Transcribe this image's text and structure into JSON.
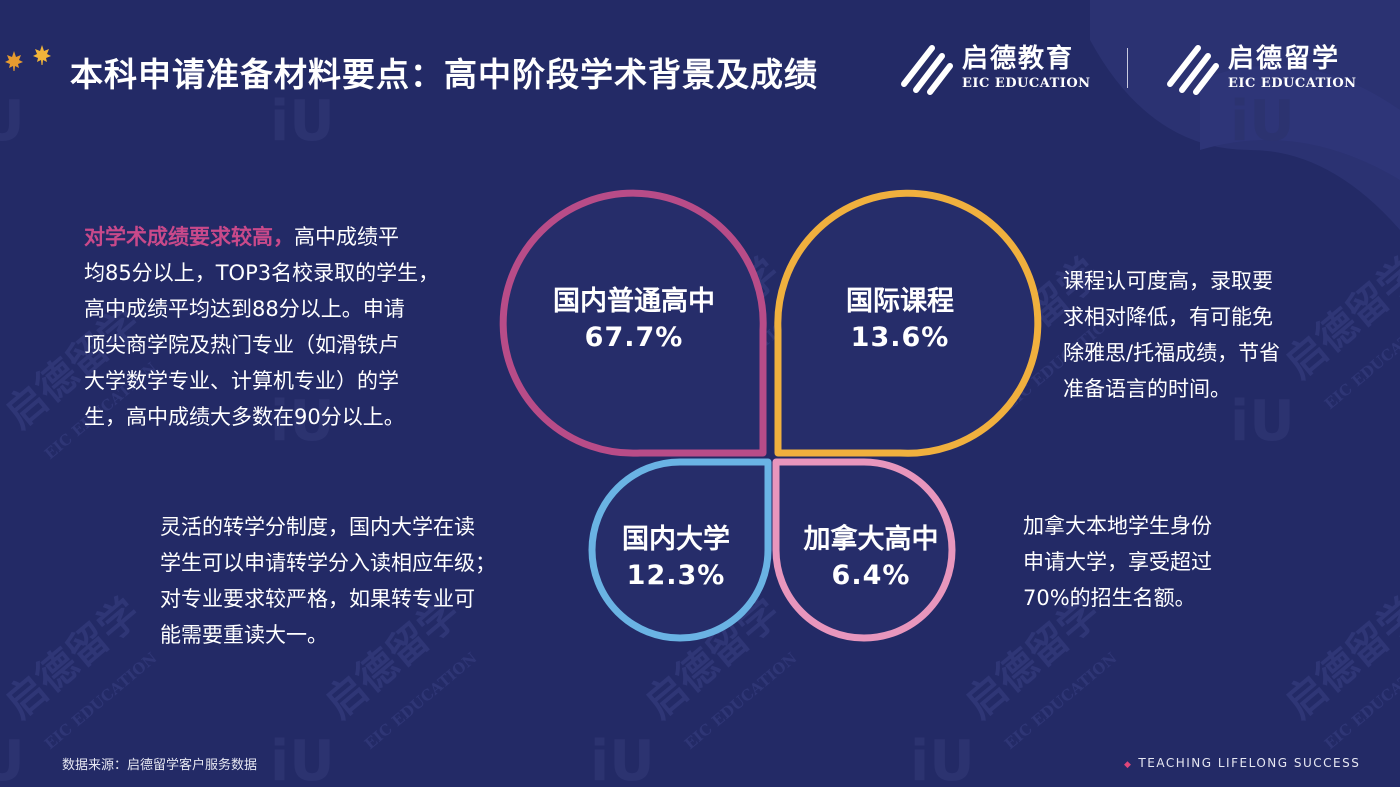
{
  "header": {
    "title": "本科申请准备材料要点：高中阶段学术背景及成绩",
    "logo_left": {
      "cn": "启德教育",
      "en": "EIC EDUCATION"
    },
    "logo_right": {
      "cn": "启德留学",
      "en": "EIC EDUCATION"
    }
  },
  "watermark": {
    "cn": "启德留学",
    "en": "EIC EDUCATION"
  },
  "petals": [
    {
      "name": "国内普通高中",
      "value": "67.7%",
      "color": "#b84c88"
    },
    {
      "name": "国际课程",
      "value": "13.6%",
      "color": "#f0b03e"
    },
    {
      "name": "国内大学",
      "value": "12.3%",
      "color": "#6ab3e4"
    },
    {
      "name": "加拿大高中",
      "value": "6.4%",
      "color": "#e896bd"
    }
  ],
  "descriptions": {
    "domestic_hs": {
      "highlight": "对学术成绩要求较高，",
      "lines": [
        "高中成绩平",
        "均85分以上，TOP3名校录取的学生，",
        "高中成绩平均达到88分以上。申请",
        "顶尖商学院及热门专业（如滑铁卢",
        "大学数学专业、计算机专业）的学",
        "生，高中成绩大多数在90分以上。"
      ]
    },
    "intl": {
      "lines": [
        "课程认可度高，录取要",
        "求相对降低，有可能免",
        "除雅思/托福成绩，节省",
        "准备语言的时间。"
      ]
    },
    "domestic_uni": {
      "lines": [
        "灵活的转学分制度，国内大学在读",
        "学生可以申请转学分入读相应年级；",
        "对专业要求较严格，如果转专业可",
        "能需要重读大一。"
      ]
    },
    "canada_hs": {
      "lines": [
        "加拿大本地学生身份",
        "申请大学，享受超过",
        "70%的招生名额。"
      ]
    }
  },
  "footer": {
    "source": "数据来源：启德留学客户服务数据",
    "slogan": "TEACHING  LIFELONG  SUCCESS"
  }
}
